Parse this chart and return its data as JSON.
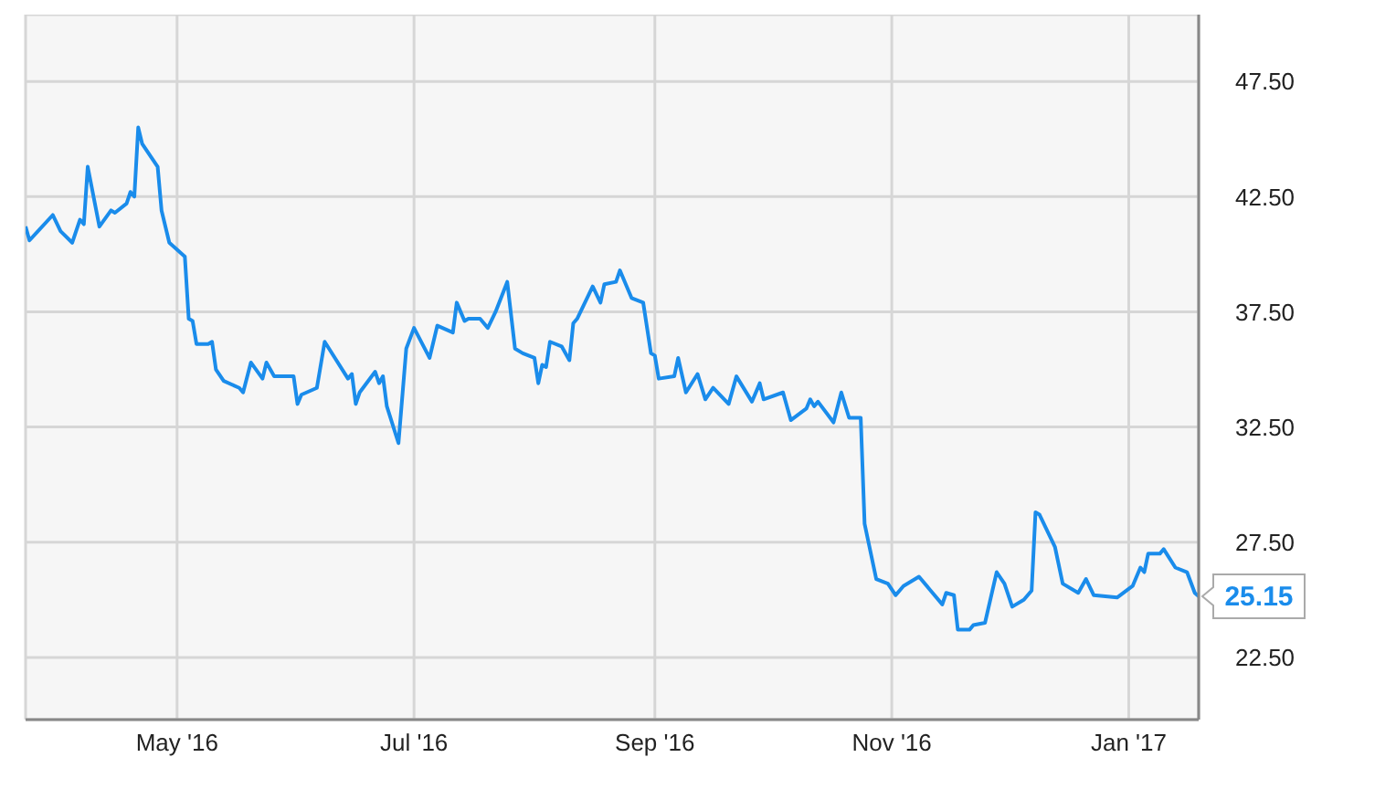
{
  "chart_data": {
    "type": "line",
    "color": "#1a8ceb",
    "grid": true,
    "x": [
      "2016-03-23",
      "2016-03-24",
      "2016-03-30",
      "2016-04-01",
      "2016-04-04",
      "2016-04-06",
      "2016-04-07",
      "2016-04-08",
      "2016-04-11",
      "2016-04-14",
      "2016-04-15",
      "2016-04-18",
      "2016-04-19",
      "2016-04-20",
      "2016-04-21",
      "2016-04-22",
      "2016-04-26",
      "2016-04-27",
      "2016-04-29",
      "2016-05-03",
      "2016-05-04",
      "2016-05-05",
      "2016-05-06",
      "2016-05-09",
      "2016-05-10",
      "2016-05-11",
      "2016-05-13",
      "2016-05-17",
      "2016-05-18",
      "2016-05-20",
      "2016-05-23",
      "2016-05-24",
      "2016-05-26",
      "2016-05-31",
      "2016-06-01",
      "2016-06-02",
      "2016-06-06",
      "2016-06-08",
      "2016-06-14",
      "2016-06-15",
      "2016-06-16",
      "2016-06-17",
      "2016-06-21",
      "2016-06-22",
      "2016-06-23",
      "2016-06-24",
      "2016-06-27",
      "2016-06-29",
      "2016-07-01",
      "2016-07-05",
      "2016-07-07",
      "2016-07-11",
      "2016-07-12",
      "2016-07-14",
      "2016-07-15",
      "2016-07-18",
      "2016-07-20",
      "2016-07-22",
      "2016-07-25",
      "2016-07-27",
      "2016-07-29",
      "2016-08-01",
      "2016-08-02",
      "2016-08-03",
      "2016-08-04",
      "2016-08-05",
      "2016-08-08",
      "2016-08-10",
      "2016-08-11",
      "2016-08-12",
      "2016-08-16",
      "2016-08-18",
      "2016-08-19",
      "2016-08-22",
      "2016-08-23",
      "2016-08-26",
      "2016-08-29",
      "2016-08-31",
      "2016-09-01",
      "2016-09-02",
      "2016-09-06",
      "2016-09-07",
      "2016-09-09",
      "2016-09-12",
      "2016-09-14",
      "2016-09-16",
      "2016-09-20",
      "2016-09-22",
      "2016-09-26",
      "2016-09-28",
      "2016-09-29",
      "2016-10-04",
      "2016-10-06",
      "2016-10-10",
      "2016-10-11",
      "2016-10-12",
      "2016-10-13",
      "2016-10-17",
      "2016-10-19",
      "2016-10-21",
      "2016-10-24",
      "2016-10-25",
      "2016-10-28",
      "2016-10-31",
      "2016-11-02",
      "2016-11-04",
      "2016-11-08",
      "2016-11-11",
      "2016-11-14",
      "2016-11-15",
      "2016-11-17",
      "2016-11-18",
      "2016-11-21",
      "2016-11-22",
      "2016-11-25",
      "2016-11-28",
      "2016-11-30",
      "2016-12-02",
      "2016-12-05",
      "2016-12-07",
      "2016-12-08",
      "2016-12-09",
      "2016-12-13",
      "2016-12-15",
      "2016-12-19",
      "2016-12-21",
      "2016-12-23",
      "2016-12-29",
      "2017-01-02",
      "2017-01-04",
      "2017-01-05",
      "2017-01-06",
      "2017-01-09",
      "2017-01-10",
      "2017-01-13",
      "2017-01-16",
      "2017-01-18",
      "2017-01-19"
    ],
    "values": [
      41.2,
      40.6,
      41.7,
      41.0,
      40.5,
      41.5,
      41.3,
      43.8,
      41.2,
      41.9,
      41.8,
      42.2,
      42.7,
      42.5,
      45.5,
      44.8,
      43.8,
      41.9,
      40.5,
      39.9,
      37.2,
      37.1,
      36.1,
      36.1,
      36.2,
      35.0,
      34.5,
      34.2,
      34.0,
      35.3,
      34.6,
      35.3,
      34.7,
      34.7,
      33.5,
      33.9,
      34.2,
      36.2,
      34.6,
      34.8,
      33.5,
      34.0,
      34.9,
      34.4,
      34.7,
      33.4,
      31.8,
      35.9,
      36.8,
      35.5,
      36.9,
      36.6,
      37.9,
      37.1,
      37.2,
      37.2,
      36.8,
      37.5,
      38.8,
      35.9,
      35.7,
      35.5,
      34.4,
      35.2,
      35.1,
      36.2,
      36.0,
      35.4,
      37.0,
      37.2,
      38.6,
      37.9,
      38.7,
      38.8,
      39.3,
      38.1,
      37.9,
      35.7,
      35.6,
      34.6,
      34.7,
      35.5,
      34.0,
      34.8,
      33.7,
      34.2,
      33.5,
      34.7,
      33.6,
      34.4,
      33.7,
      34.0,
      32.8,
      33.3,
      33.7,
      33.4,
      33.6,
      32.7,
      34.0,
      32.9,
      32.9,
      28.3,
      25.9,
      25.7,
      25.2,
      25.6,
      26.0,
      25.4,
      24.8,
      25.3,
      25.2,
      23.7,
      23.7,
      23.9,
      24.0,
      26.2,
      25.7,
      24.7,
      25.0,
      25.4,
      28.8,
      28.7,
      27.3,
      25.7,
      25.3,
      25.9,
      25.2,
      25.1,
      25.6,
      26.4,
      26.2,
      27.0,
      27.0,
      27.2,
      26.4,
      26.2,
      25.3,
      25.15
    ],
    "xlim": [
      "2016-03-23",
      "2017-01-19"
    ],
    "xticks": [
      {
        "value": "2016-05-01",
        "label": "May '16"
      },
      {
        "value": "2016-07-01",
        "label": "Jul '16"
      },
      {
        "value": "2016-09-01",
        "label": "Sep '16"
      },
      {
        "value": "2016-11-01",
        "label": "Nov '16"
      },
      {
        "value": "2017-01-01",
        "label": "Jan '17"
      }
    ],
    "ylim": [
      19.8,
      50.4
    ],
    "yticks": [
      {
        "value": 22.5,
        "label": "22.50"
      },
      {
        "value": 27.5,
        "label": "27.50"
      },
      {
        "value": 32.5,
        "label": "32.50"
      },
      {
        "value": 37.5,
        "label": "37.50"
      },
      {
        "value": 42.5,
        "label": "42.50"
      },
      {
        "value": 47.5,
        "label": "47.50"
      }
    ],
    "annotations": [
      {
        "text": "25.15",
        "x": "2017-01-19",
        "y": 25.15
      }
    ]
  }
}
